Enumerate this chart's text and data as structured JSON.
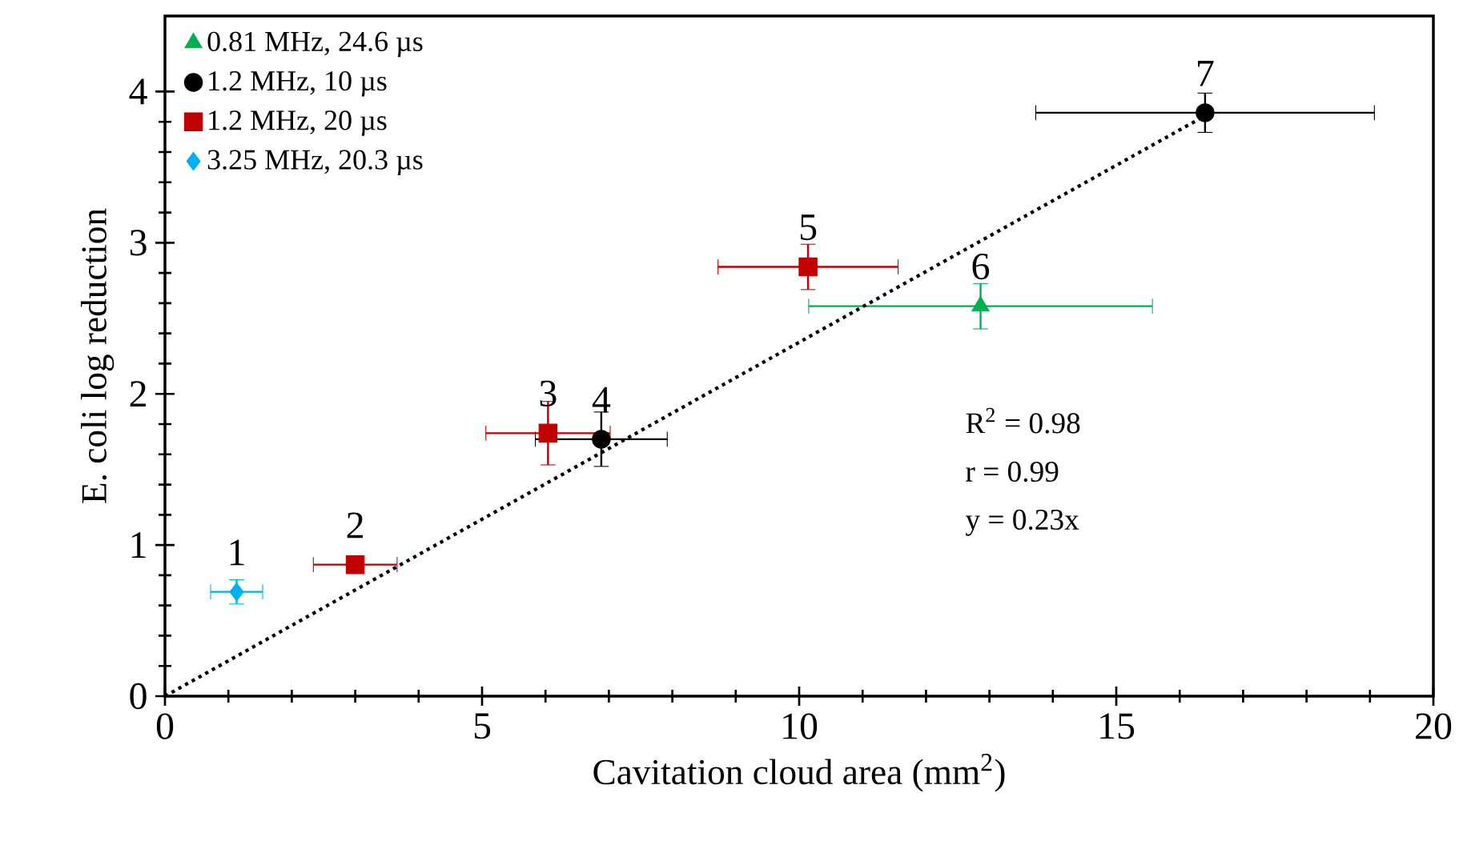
{
  "chart_data": {
    "type": "scatter",
    "xlabel": "Cavitation cloud area (mm$^{2}$)",
    "ylabel": "E. coli log reduction",
    "xlim": [
      0,
      20
    ],
    "ylim": [
      0,
      4.5
    ],
    "xticks": [
      0,
      5,
      10,
      15,
      20
    ],
    "yticks": [
      0,
      1,
      2,
      3,
      4
    ],
    "grid": false,
    "legend": "top left",
    "series": [
      {
        "name": "0.81 MHz, 24.6 µs",
        "color": "#00b050",
        "marker": "triangle",
        "x": [
          12.86
        ],
        "values": [
          2.58
        ],
        "xerrors": [
          2.71
        ],
        "errors": [
          0.15
        ]
      },
      {
        "name": "1.2 MHz, 10 µs",
        "color": "#000000",
        "marker": "circle",
        "x": [
          6.88,
          16.4
        ],
        "values": [
          1.7,
          3.86
        ],
        "xerrors": [
          1.04,
          2.67
        ],
        "errors": [
          0.18,
          0.13
        ]
      },
      {
        "name": "1.2 MHz, 20 µs",
        "color": "#c00000",
        "marker": "square",
        "x": [
          3.0,
          6.04,
          10.14
        ],
        "values": [
          0.87,
          1.74,
          2.84
        ],
        "xerrors": [
          0.66,
          0.98,
          1.42
        ],
        "errors": [
          null,
          0.21,
          0.15
        ]
      },
      {
        "name": "3.25 MHz, 20.3 µs",
        "color": "#00b0f0",
        "marker": "diamond",
        "x": [
          1.13
        ],
        "values": [
          0.69
        ],
        "xerrors": [
          0.41
        ],
        "errors": [
          0.08
        ]
      },
      {
        "type": "line",
        "color": "#000000",
        "line_style": "dotted",
        "x": [
          0,
          16.4
        ],
        "values": [
          0,
          3.84
        ]
      }
    ],
    "annotations": [
      {
        "text": "1",
        "x": 1.13,
        "y": 0.69
      },
      {
        "text": "2",
        "x": 3.0,
        "y": 0.87
      },
      {
        "text": "3",
        "x": 6.04,
        "y": 1.74
      },
      {
        "text": "4",
        "x": 6.88,
        "y": 1.7
      },
      {
        "text": "5",
        "x": 10.14,
        "y": 2.84
      },
      {
        "text": "6",
        "x": 12.86,
        "y": 2.58
      },
      {
        "text": "7",
        "x": 16.4,
        "y": 3.86
      },
      "R$^{2}$ = 0.98",
      "r   = 0.99",
      "y  = 0.23x"
    ]
  }
}
